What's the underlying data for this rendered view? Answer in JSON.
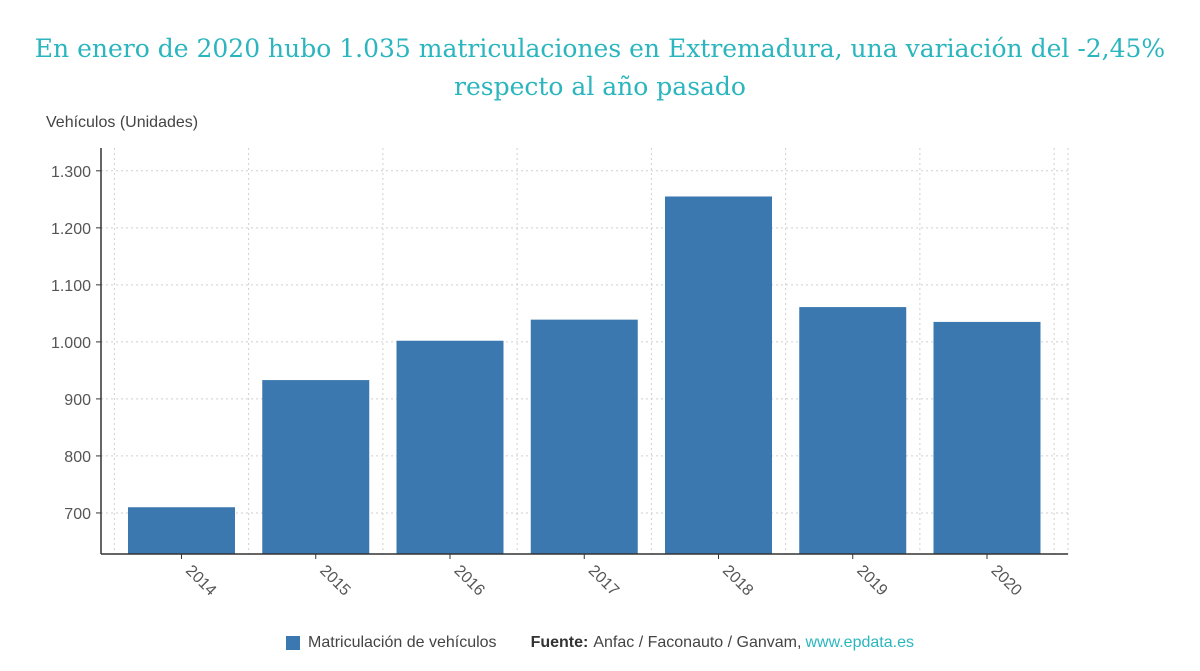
{
  "title_line1": "En enero de 2020 hubo 1.035 matriculaciones en Extremadura, una variación del -2,45%",
  "title_line2": "respecto al año pasado",
  "legend": {
    "series_label": "Matriculación de vehículos",
    "source_label": "Fuente:",
    "source_text": "Anfac / Faconauto / Ganvam,",
    "source_link": "www.epdata.es"
  },
  "colors": {
    "bar": "#3b78b0",
    "title": "#2bb5be"
  },
  "chart_data": {
    "type": "bar",
    "categories": [
      "2014",
      "2015",
      "2016",
      "2017",
      "2018",
      "2019",
      "2020"
    ],
    "series": [
      {
        "name": "Matriculación de vehículos",
        "values": [
          710,
          933,
          1002,
          1039,
          1255,
          1061,
          1035
        ]
      }
    ],
    "title": "En enero de 2020 hubo 1.035 matriculaciones en Extremadura, una variación del -2,45% respecto al año pasado",
    "ylabel": "Vehículos (Unidades)",
    "xlabel": "",
    "ylim": [
      628,
      1340
    ],
    "yticks": [
      700,
      800,
      900,
      1000,
      1100,
      1200,
      1300
    ],
    "ytick_labels": [
      "700",
      "800",
      "900",
      "1.000",
      "1.100",
      "1.200",
      "1.300"
    ],
    "grid": true,
    "legend_position": "bottom"
  }
}
